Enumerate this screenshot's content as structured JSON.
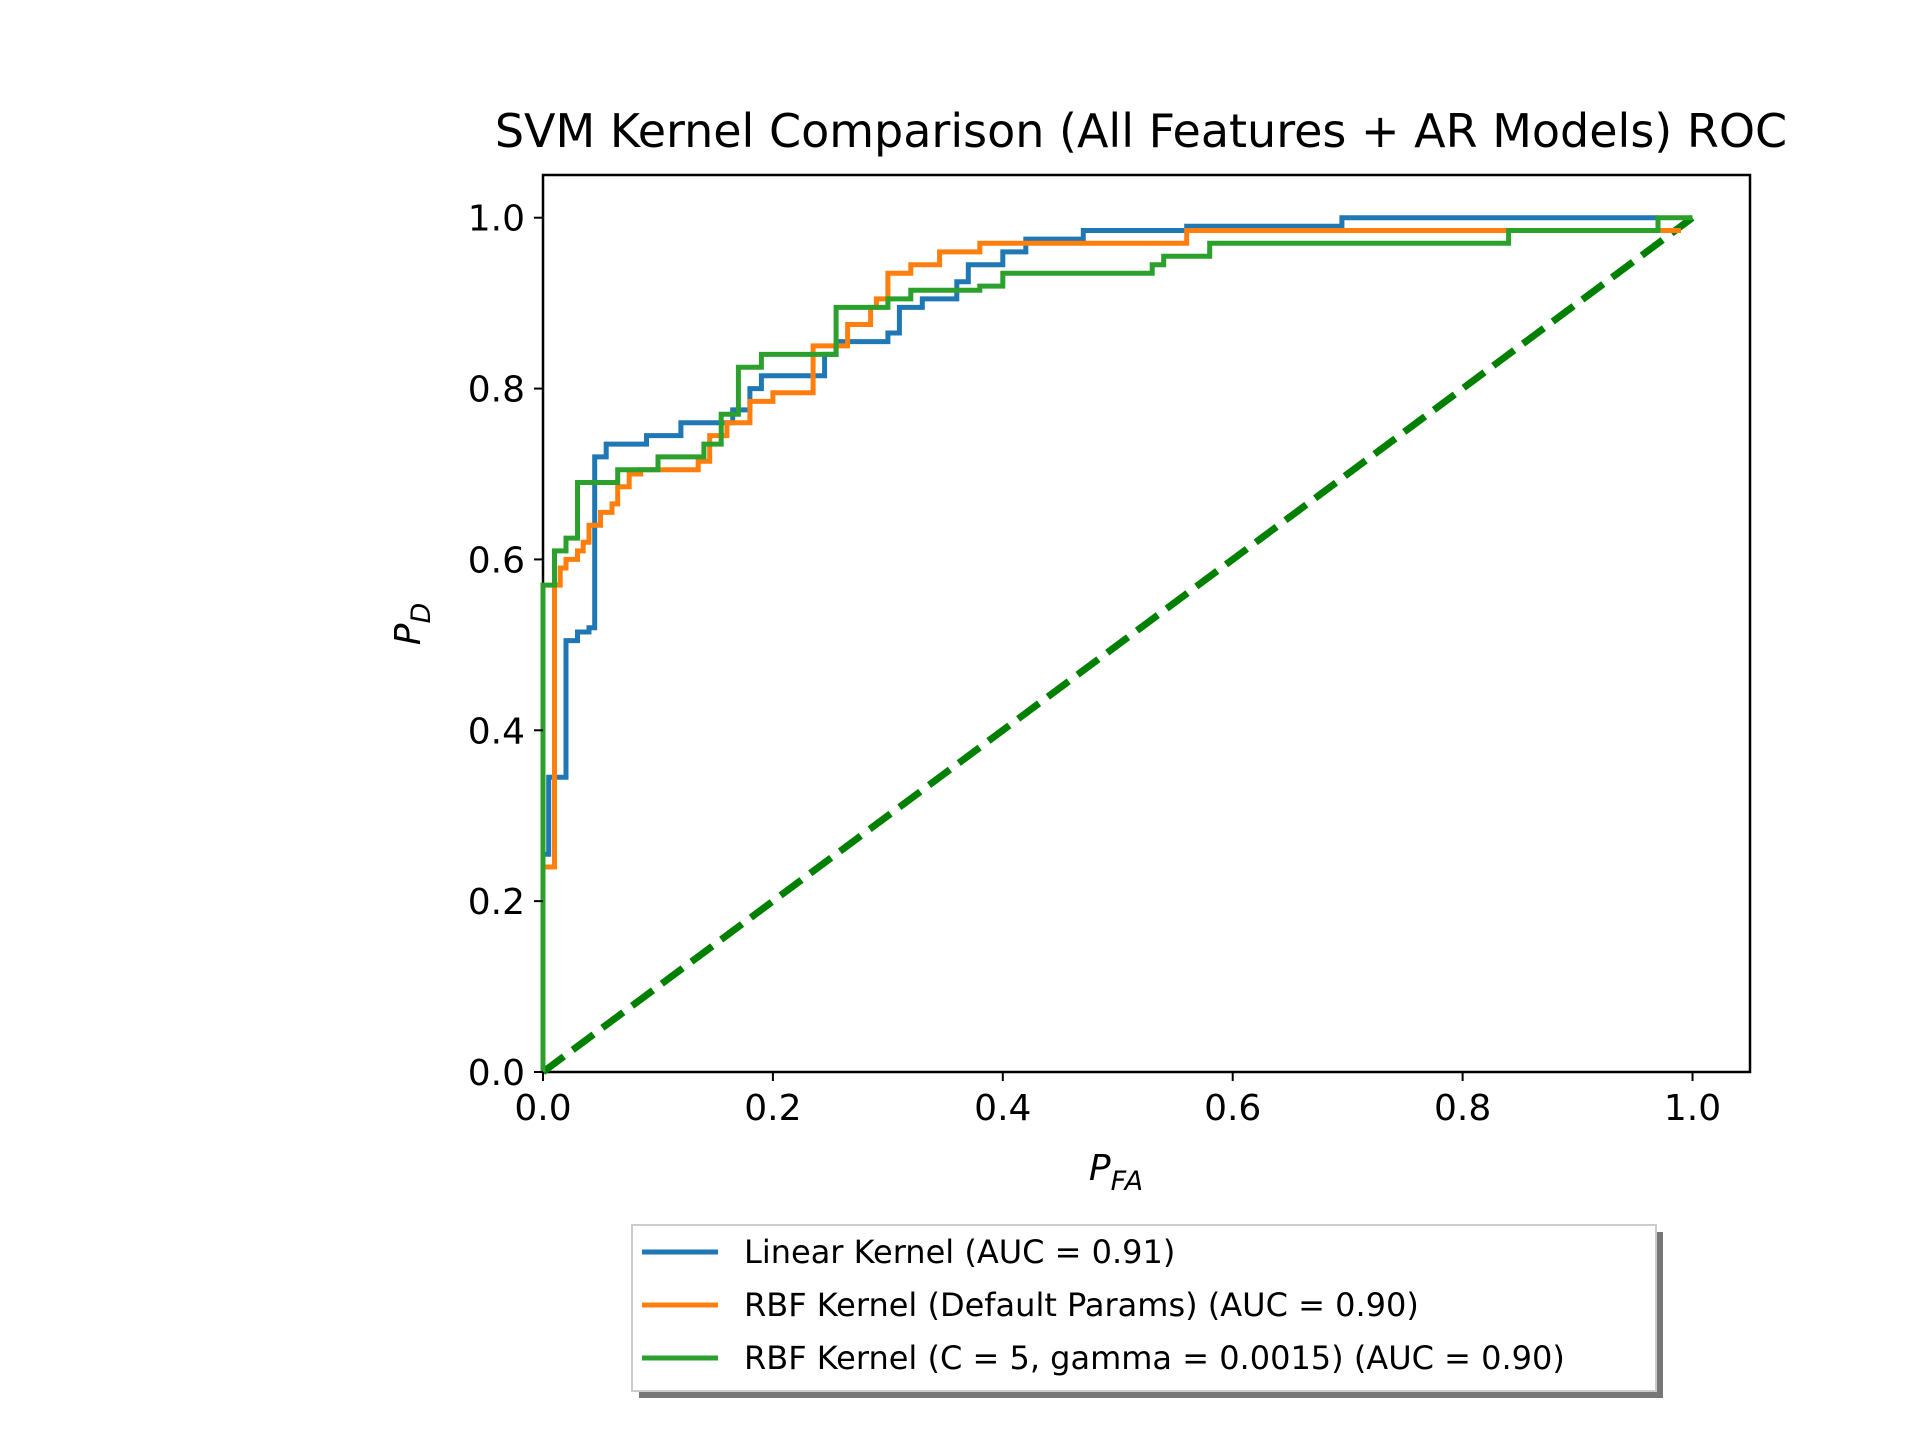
{
  "chart_data": {
    "type": "line",
    "title": "SVM Kernel Comparison (All Features + AR Models) ROC",
    "xlabel": {
      "main": "P",
      "sub": "FA"
    },
    "ylabel": {
      "main": "P",
      "sub": "D"
    },
    "xlim": [
      0.0,
      1.05
    ],
    "ylim": [
      0.0,
      1.05
    ],
    "xticks": [
      "0.0",
      "0.2",
      "0.4",
      "0.6",
      "0.8",
      "1.0"
    ],
    "yticks": [
      "0.0",
      "0.2",
      "0.4",
      "0.6",
      "0.8",
      "1.0"
    ],
    "grid": false,
    "legend_position": "below plot, centered",
    "series": [
      {
        "name": "Linear Kernel (AUC = 0.91)",
        "color": "#1f77b4",
        "style": "solid",
        "x": [
          0.0,
          0.0,
          0.005,
          0.005,
          0.02,
          0.02,
          0.03,
          0.03,
          0.04,
          0.04,
          0.045,
          0.045,
          0.055,
          0.055,
          0.09,
          0.09,
          0.12,
          0.12,
          0.165,
          0.165,
          0.18,
          0.18,
          0.19,
          0.19,
          0.245,
          0.245,
          0.255,
          0.255,
          0.3,
          0.3,
          0.31,
          0.31,
          0.33,
          0.33,
          0.36,
          0.36,
          0.37,
          0.37,
          0.4,
          0.4,
          0.42,
          0.42,
          0.47,
          0.47,
          0.56,
          0.56,
          0.695,
          0.695,
          0.97
        ],
        "y": [
          0.0,
          0.255,
          0.255,
          0.345,
          0.345,
          0.505,
          0.505,
          0.515,
          0.515,
          0.52,
          0.52,
          0.72,
          0.72,
          0.735,
          0.735,
          0.745,
          0.745,
          0.76,
          0.76,
          0.775,
          0.775,
          0.8,
          0.8,
          0.815,
          0.815,
          0.84,
          0.84,
          0.855,
          0.855,
          0.865,
          0.865,
          0.895,
          0.895,
          0.905,
          0.905,
          0.925,
          0.925,
          0.945,
          0.945,
          0.96,
          0.96,
          0.975,
          0.975,
          0.985,
          0.985,
          0.99,
          0.99,
          1.0,
          1.0
        ]
      },
      {
        "name": "RBF Kernel (Default Params) (AUC = 0.90)",
        "color": "#ff7f0e",
        "style": "solid",
        "x": [
          0.0,
          0.0,
          0.01,
          0.01,
          0.015,
          0.015,
          0.02,
          0.02,
          0.03,
          0.03,
          0.035,
          0.035,
          0.04,
          0.04,
          0.05,
          0.05,
          0.06,
          0.06,
          0.065,
          0.065,
          0.075,
          0.075,
          0.085,
          0.085,
          0.135,
          0.135,
          0.145,
          0.145,
          0.16,
          0.16,
          0.18,
          0.18,
          0.2,
          0.2,
          0.235,
          0.235,
          0.265,
          0.265,
          0.285,
          0.285,
          0.29,
          0.29,
          0.3,
          0.3,
          0.32,
          0.32,
          0.345,
          0.345,
          0.38,
          0.38,
          0.56,
          0.56,
          0.99
        ],
        "y": [
          0.0,
          0.24,
          0.24,
          0.57,
          0.57,
          0.59,
          0.59,
          0.6,
          0.6,
          0.61,
          0.61,
          0.62,
          0.62,
          0.64,
          0.64,
          0.655,
          0.655,
          0.665,
          0.665,
          0.685,
          0.685,
          0.7,
          0.7,
          0.705,
          0.705,
          0.715,
          0.715,
          0.745,
          0.745,
          0.76,
          0.76,
          0.785,
          0.785,
          0.795,
          0.795,
          0.85,
          0.85,
          0.875,
          0.875,
          0.895,
          0.895,
          0.905,
          0.905,
          0.935,
          0.935,
          0.945,
          0.945,
          0.96,
          0.96,
          0.97,
          0.97,
          0.985,
          0.985
        ]
      },
      {
        "name": "RBF Kernel (C = 5, gamma = 0.0015) (AUC = 0.90)",
        "color": "#2ca02c",
        "style": "solid",
        "x": [
          0.0,
          0.0,
          0.01,
          0.01,
          0.02,
          0.02,
          0.03,
          0.03,
          0.065,
          0.065,
          0.1,
          0.1,
          0.14,
          0.14,
          0.155,
          0.155,
          0.17,
          0.17,
          0.19,
          0.19,
          0.255,
          0.255,
          0.3,
          0.3,
          0.32,
          0.32,
          0.38,
          0.38,
          0.4,
          0.4,
          0.53,
          0.53,
          0.54,
          0.54,
          0.58,
          0.58,
          0.84,
          0.84,
          0.97,
          0.97,
          1.0
        ],
        "y": [
          0.0,
          0.57,
          0.57,
          0.61,
          0.61,
          0.625,
          0.625,
          0.69,
          0.69,
          0.705,
          0.705,
          0.72,
          0.72,
          0.735,
          0.735,
          0.77,
          0.77,
          0.825,
          0.825,
          0.84,
          0.84,
          0.895,
          0.895,
          0.905,
          0.905,
          0.915,
          0.915,
          0.92,
          0.92,
          0.935,
          0.935,
          0.945,
          0.945,
          0.955,
          0.955,
          0.97,
          0.97,
          0.985,
          0.985,
          1.0,
          1.0
        ]
      },
      {
        "name": "",
        "color": "#008000",
        "style": "dashed",
        "x": [
          0.0,
          1.0
        ],
        "y": [
          0.0,
          1.0
        ]
      }
    ],
    "legend": [
      {
        "label": "Linear Kernel (AUC = 0.91)",
        "color": "#1f77b4"
      },
      {
        "label": "RBF Kernel (Default Params) (AUC = 0.90)",
        "color": "#ff7f0e"
      },
      {
        "label": "RBF Kernel (C = 5, gamma = 0.0015) (AUC = 0.90)",
        "color": "#2ca02c"
      }
    ]
  }
}
